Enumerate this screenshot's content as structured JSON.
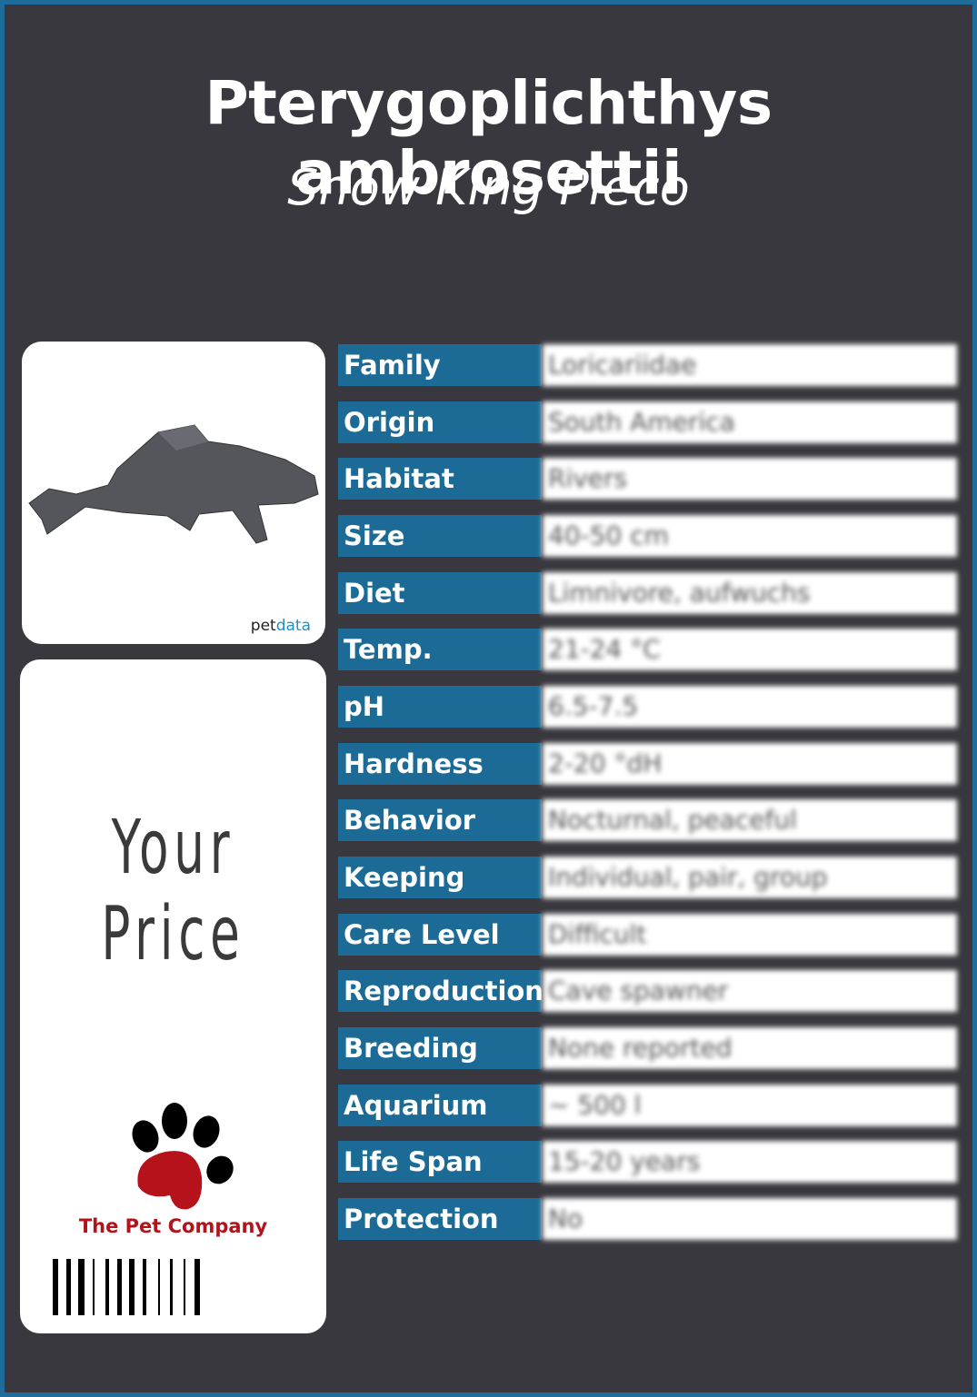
{
  "header": {
    "title": "Pterygoplichthys ambrosettii",
    "subtitle": "Snow King Pleco"
  },
  "image_card": {
    "watermark_a": "pet",
    "watermark_b": "data"
  },
  "price_card": {
    "price_label": "Your Price",
    "company": "The Pet Company"
  },
  "table": {
    "rows": [
      [
        "Family",
        "Loricariidae"
      ],
      [
        "Origin",
        "South America"
      ],
      [
        "Habitat",
        "Rivers"
      ],
      [
        "Size",
        "40-50 cm"
      ],
      [
        "Diet",
        "Limnivore, aufwuchs"
      ],
      [
        "Temp.",
        "21-24 °C"
      ],
      [
        "pH",
        "6.5-7.5"
      ],
      [
        "Hardness",
        "2-20 °dH"
      ],
      [
        "Behavior",
        "Nocturnal, peaceful"
      ],
      [
        "Keeping",
        "Individual, pair, group"
      ],
      [
        "Care Level",
        "Difficult"
      ],
      [
        "Reproduction",
        "Cave spawner"
      ],
      [
        "Breeding",
        "None reported"
      ],
      [
        "Aquarium",
        "~ 500 l"
      ],
      [
        "Life Span",
        "15-20 years"
      ],
      [
        "Protection",
        "No"
      ]
    ]
  }
}
